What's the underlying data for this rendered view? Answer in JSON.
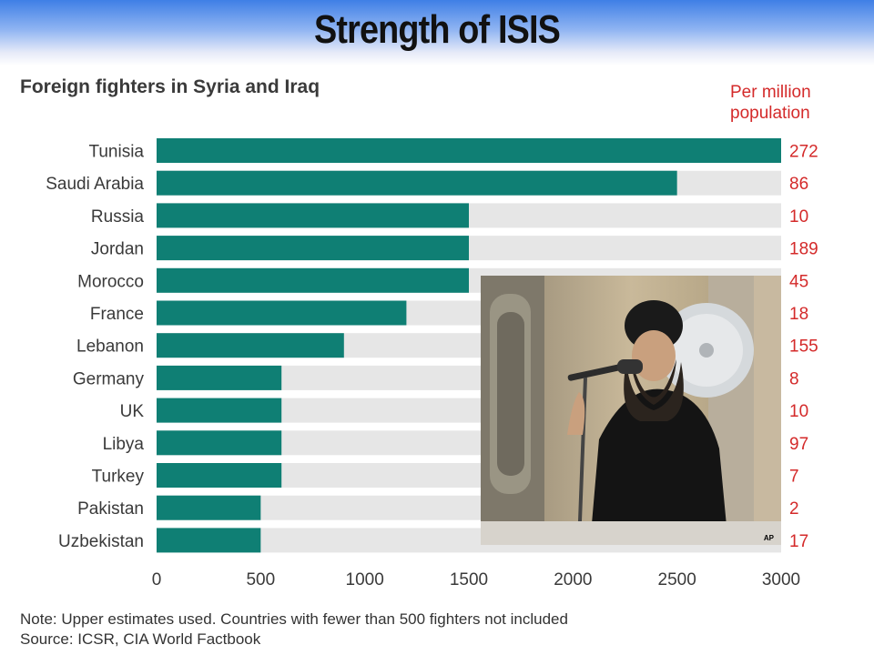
{
  "slide": {
    "title": "Strength of ISIS"
  },
  "chart_data": {
    "type": "bar",
    "orientation": "horizontal",
    "title": "Foreign fighters in Syria and Iraq",
    "categories": [
      "Tunisia",
      "Saudi Arabia",
      "Russia",
      "Jordan",
      "Morocco",
      "France",
      "Lebanon",
      "Germany",
      "UK",
      "Libya",
      "Turkey",
      "Pakistan",
      "Uzbekistan"
    ],
    "values": [
      3000,
      2500,
      1500,
      1500,
      1500,
      1200,
      900,
      600,
      600,
      600,
      600,
      500,
      500
    ],
    "per_million_label": "Per million population",
    "per_million": [
      "272",
      "86",
      "10",
      "189",
      "45",
      "18",
      "155",
      "8",
      "10",
      "97",
      "7",
      "2",
      "17"
    ],
    "xlim": [
      0,
      3000
    ],
    "xticks": [
      0,
      500,
      1000,
      1500,
      2000,
      2500,
      3000
    ],
    "grid": false,
    "colors": {
      "bar": "#0f7f74",
      "track": "#e6e6e6",
      "per_million": "#d42a2a"
    }
  },
  "notes": {
    "note": "Note: Upper estimates used. Countries with fewer than 500 fighters not included",
    "source": "Source: ICSR, CIA World Factbook"
  },
  "photo": {
    "subject": "photo of a man speaking at a microphone",
    "watermark": "AP"
  }
}
